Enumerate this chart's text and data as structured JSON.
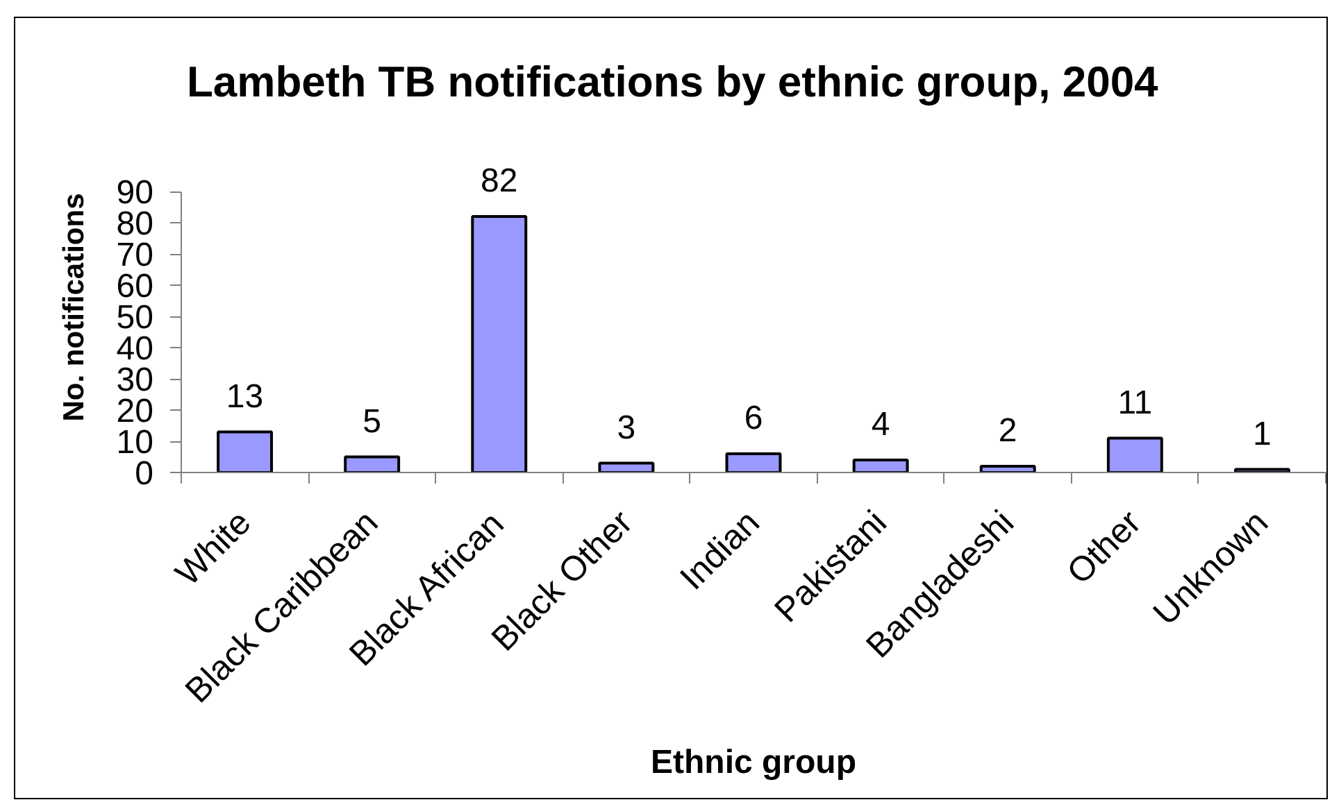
{
  "chart_data": {
    "type": "bar",
    "title": "Lambeth TB notifications by ethnic group, 2004",
    "xlabel": "Ethnic group",
    "ylabel": "No. notifications",
    "categories": [
      "White",
      "Black Caribbean",
      "Black African",
      "Black Other",
      "Indian",
      "Pakistani",
      "Bangladeshi",
      "Other",
      "Unknown"
    ],
    "values": [
      13,
      5,
      82,
      3,
      6,
      4,
      2,
      11,
      1
    ],
    "color": "#9999ff",
    "ylim": [
      0,
      90
    ],
    "yticks": [
      0,
      10,
      20,
      30,
      40,
      50,
      60,
      70,
      80,
      90
    ],
    "data_labels": true
  }
}
